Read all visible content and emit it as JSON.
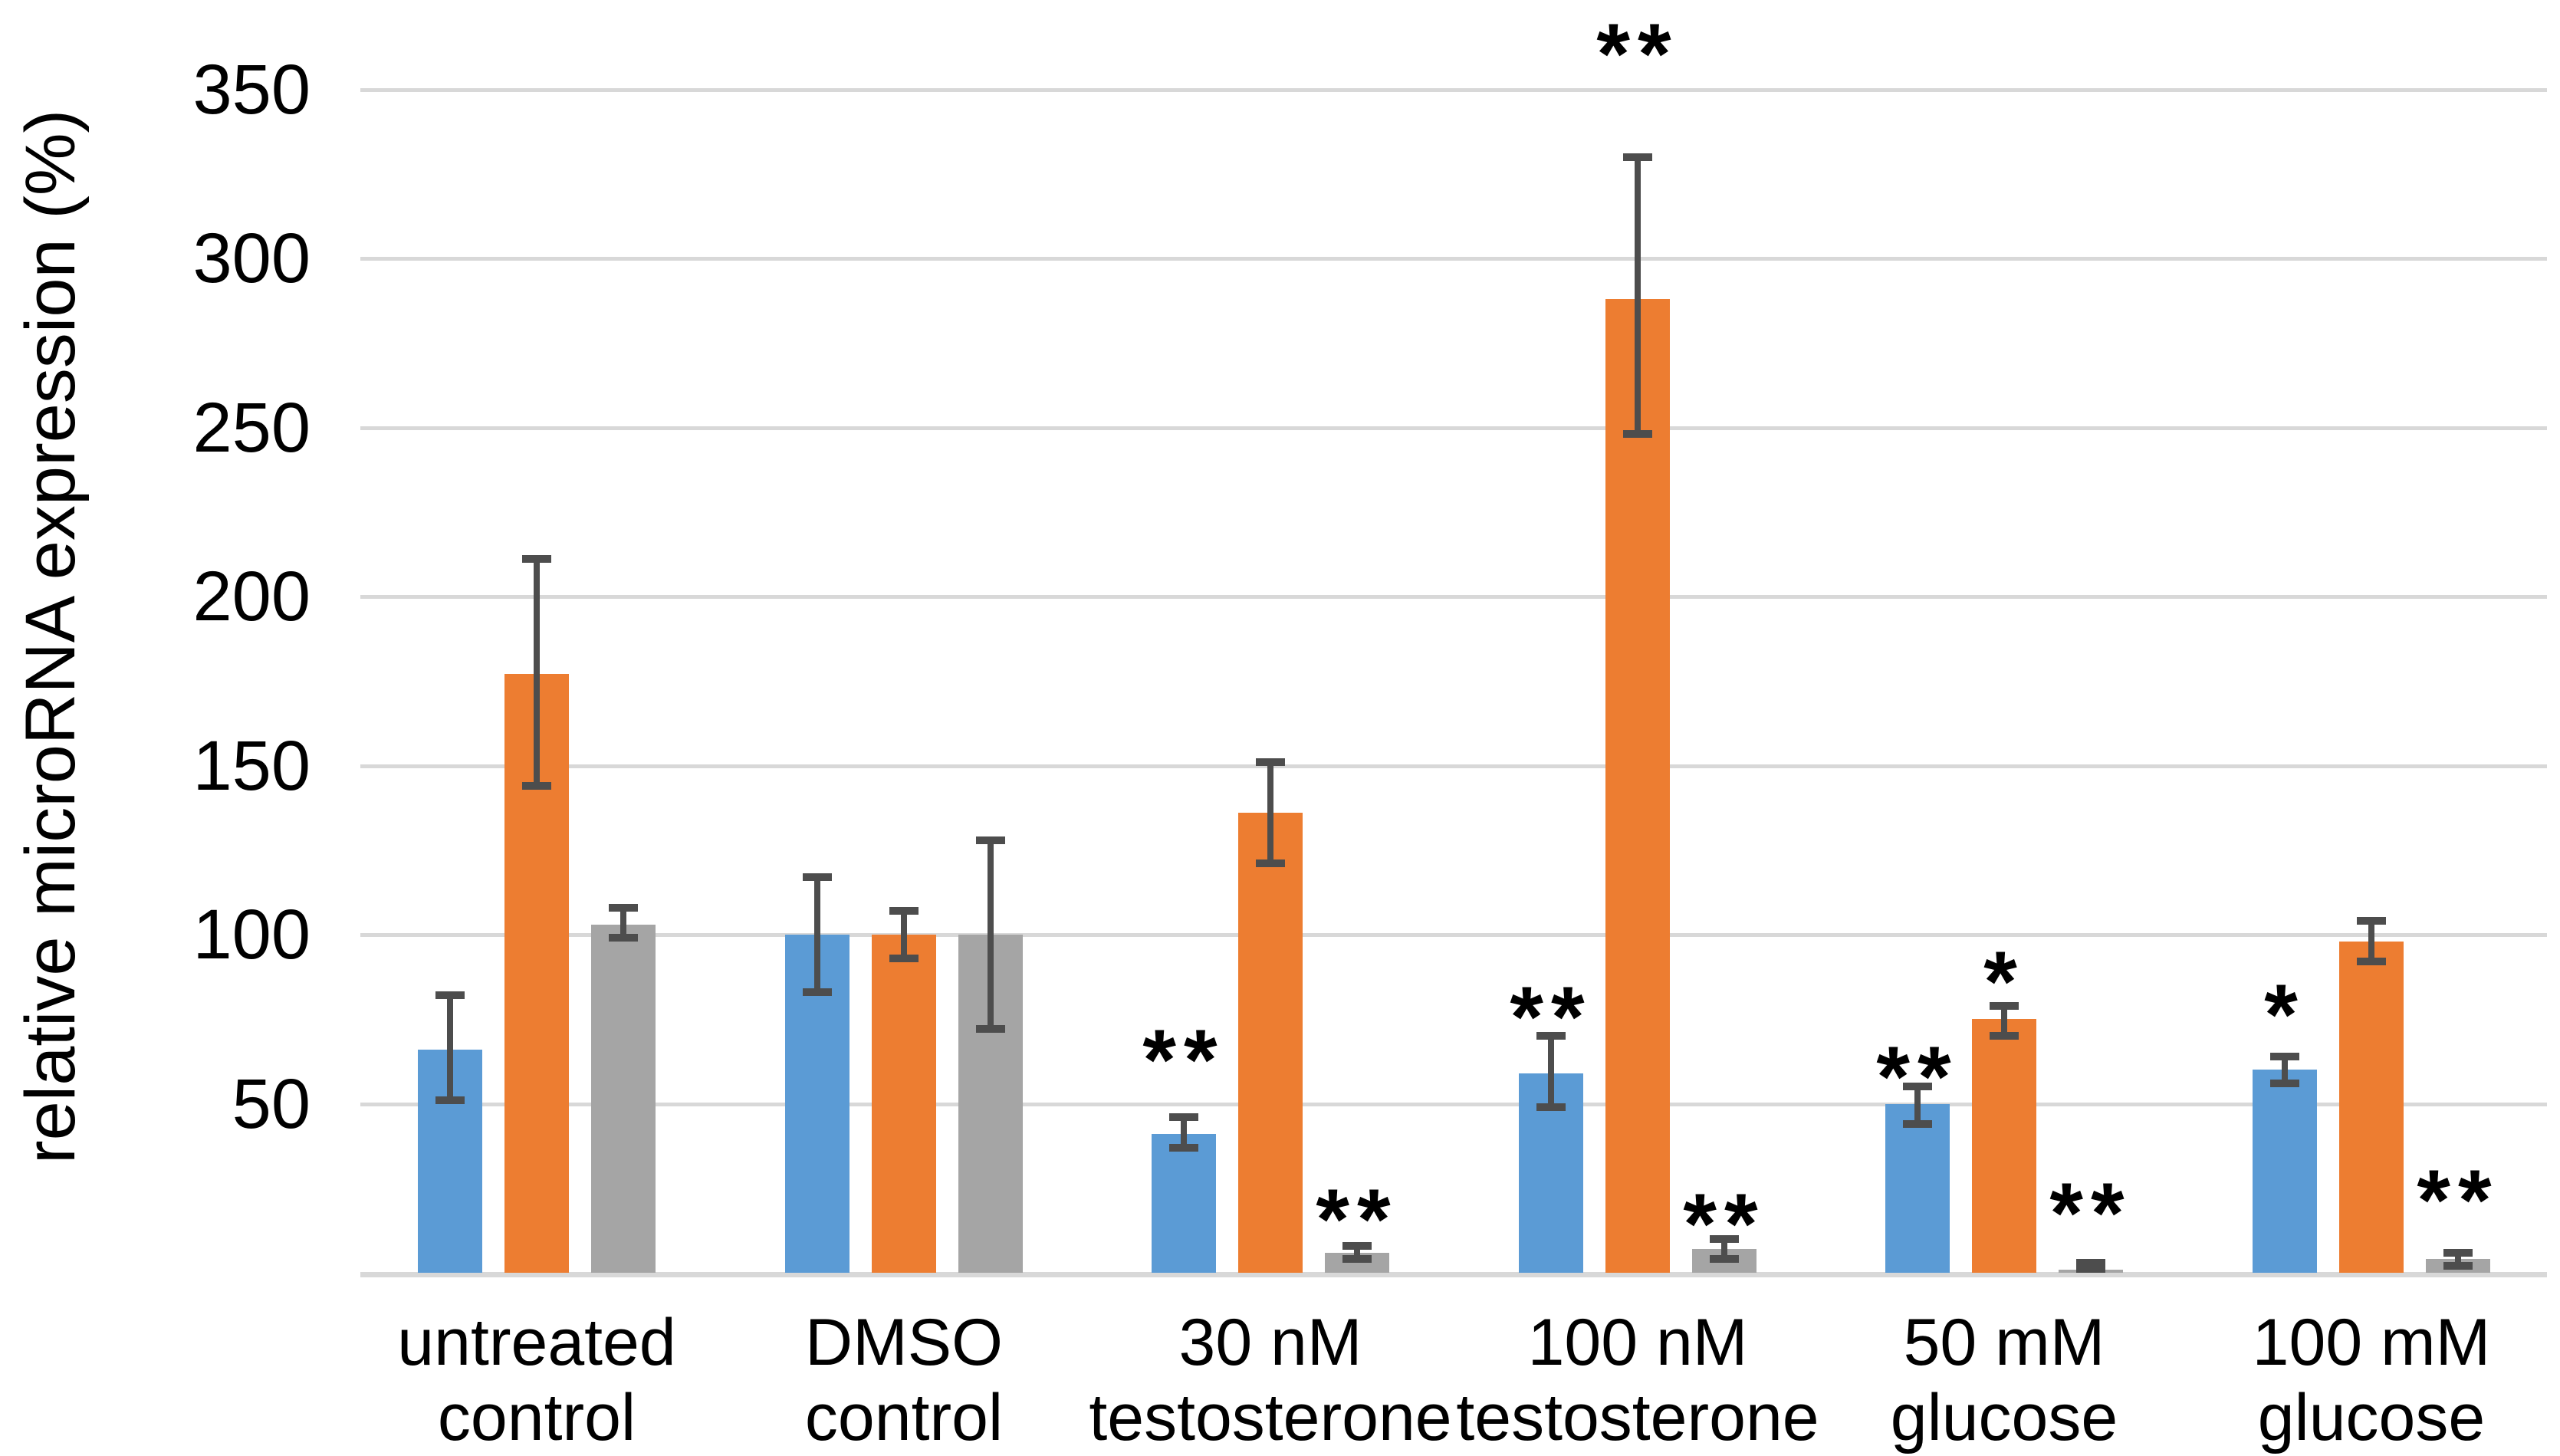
{
  "chart_data": {
    "type": "bar",
    "title": "",
    "xlabel": "",
    "ylabel": "relative microRNA expression (%)",
    "ylim": [
      0,
      364
    ],
    "yticks": [
      50,
      100,
      150,
      200,
      250,
      300,
      350
    ],
    "grid": true,
    "legend": "none",
    "categories": [
      "untreated control",
      "DMSO control",
      "30 nM testosterone",
      "100 nM testosterone",
      "50 mM glucose",
      "100 mM glucose"
    ],
    "category_label_lines": [
      [
        "untreated",
        "control"
      ],
      [
        "DMSO",
        "control"
      ],
      [
        "30 nM",
        "testosterone"
      ],
      [
        "100 nM",
        "testosterone"
      ],
      [
        "50 mM",
        "glucose"
      ],
      [
        "100 mM",
        "glucose"
      ]
    ],
    "series": [
      {
        "name": "blue",
        "color": "#5B9BD5",
        "values": [
          66,
          100,
          41,
          59,
          50,
          60
        ],
        "err_low": [
          51,
          83,
          37,
          49,
          44,
          56
        ],
        "err_high": [
          82,
          117,
          46,
          70,
          55,
          64
        ],
        "significance": [
          "",
          "",
          "**",
          "**",
          "**",
          "*"
        ]
      },
      {
        "name": "orange",
        "color": "#ED7D31",
        "values": [
          177,
          100,
          136,
          288,
          75,
          98
        ],
        "err_low": [
          144,
          93,
          121,
          248,
          70,
          92
        ],
        "err_high": [
          211,
          107,
          151,
          330,
          79,
          104
        ],
        "significance": [
          "",
          "",
          "",
          "**",
          "*",
          ""
        ]
      },
      {
        "name": "gray",
        "color": "#A5A5A5",
        "values": [
          103,
          100,
          6,
          7,
          1,
          4
        ],
        "err_low": [
          99,
          72,
          4,
          4,
          0,
          2
        ],
        "err_high": [
          108,
          128,
          8,
          10,
          3,
          6
        ],
        "significance": [
          "",
          "",
          "**",
          "**",
          "**",
          "**"
        ]
      }
    ],
    "colors": {
      "background": "#FFFFFF",
      "gridline": "#D8D8D8",
      "axis_line": "#D8D8D8",
      "error_bar": "#4D4D4D",
      "text": "#000000",
      "significance": "#000000"
    }
  }
}
